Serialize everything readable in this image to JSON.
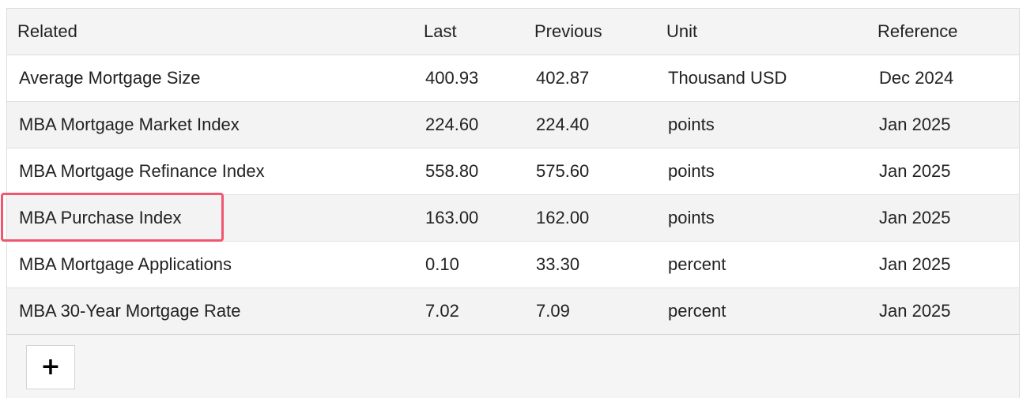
{
  "table": {
    "headers": [
      "Related",
      "Last",
      "Previous",
      "Unit",
      "Reference"
    ],
    "rows": [
      [
        "Average Mortgage Size",
        "400.93",
        "402.87",
        "Thousand USD",
        "Dec 2024"
      ],
      [
        "MBA Mortgage Market Index",
        "224.60",
        "224.40",
        "points",
        "Jan 2025"
      ],
      [
        "MBA Mortgage Refinance Index",
        "558.80",
        "575.60",
        "points",
        "Jan 2025"
      ],
      [
        "MBA Purchase Index",
        "163.00",
        "162.00",
        "points",
        "Jan 2025"
      ],
      [
        "MBA Mortgage Applications",
        "0.10",
        "33.30",
        "percent",
        "Jan 2025"
      ],
      [
        "MBA 30-Year Mortgage Rate",
        "7.02",
        "7.09",
        "percent",
        "Jan 2025"
      ]
    ]
  },
  "footer": {
    "add_label": "+",
    "add_icon": "plus-icon"
  },
  "highlight": {
    "color": "#f0566f"
  }
}
